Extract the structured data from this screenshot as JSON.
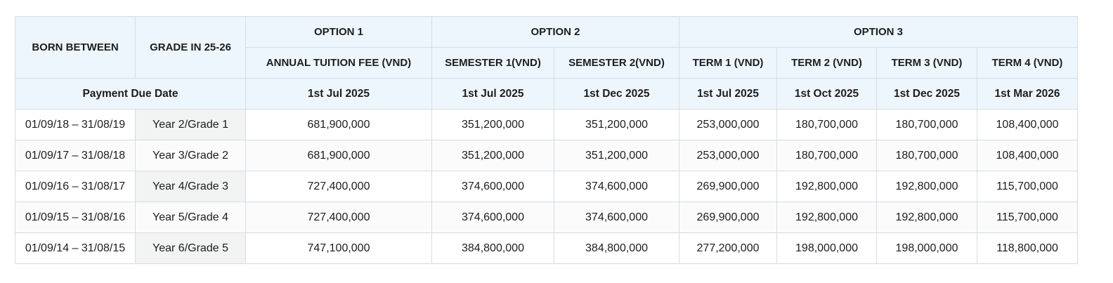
{
  "headers": {
    "born_between": "BORN BETWEEN",
    "grade": "GRADE IN 25-26",
    "option1": "OPTION 1",
    "option2": "OPTION 2",
    "option3": "OPTION 3",
    "sub": [
      "ANNUAL TUITION FEE (VND)",
      "SEMESTER 1(VND)",
      "SEMESTER 2(VND)",
      "TERM 1 (VND)",
      "TERM 2 (VND)",
      "TERM 3 (VND)",
      "TERM 4 (VND)"
    ]
  },
  "due": {
    "label": "Payment Due Date",
    "dates": [
      "1st Jul 2025",
      "1st Jul 2025",
      "1st Dec 2025",
      "1st Jul 2025",
      "1st Oct 2025",
      "1st Dec 2025",
      "1st Mar 2026"
    ]
  },
  "rows": [
    [
      "01/09/18 – 31/08/19",
      "Year 2/Grade 1",
      "681,900,000",
      "351,200,000",
      "351,200,000",
      "253,000,000",
      "180,700,000",
      "180,700,000",
      "108,400,000"
    ],
    [
      "01/09/17 – 31/08/18",
      "Year 3/Grade 2",
      "681,900,000",
      "351,200,000",
      "351,200,000",
      "253,000,000",
      "180,700,000",
      "180,700,000",
      "108,400,000"
    ],
    [
      "01/09/16 – 31/08/17",
      "Year 4/Grade 3",
      "727,400,000",
      "374,600,000",
      "374,600,000",
      "269,900,000",
      "192,800,000",
      "192,800,000",
      "115,700,000"
    ],
    [
      "01/09/15 – 31/08/16",
      "Year 5/Grade 4",
      "727,400,000",
      "374,600,000",
      "374,600,000",
      "269,900,000",
      "192,800,000",
      "192,800,000",
      "115,700,000"
    ],
    [
      "01/09/14 – 31/08/15",
      "Year 6/Grade 5",
      "747,100,000",
      "384,800,000",
      "384,800,000",
      "277,200,000",
      "198,000,000",
      "198,000,000",
      "118,800,000"
    ]
  ]
}
